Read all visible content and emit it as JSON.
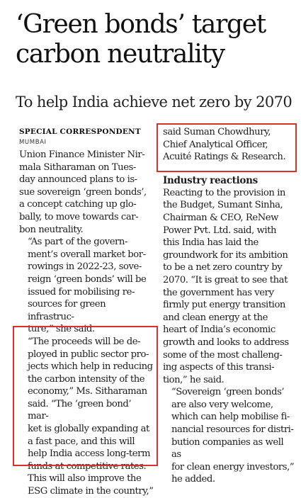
{
  "article": {
    "headline": "‘Green bonds’ target\ncarbon neutrality",
    "subhead": "To help India achieve net zero by 2070",
    "byline": "SPECIAL CORRESPONDENT",
    "dateline": "MUMBAI",
    "left_column": {
      "p1": "Union Finance Minister Nir-\nmala Sitharaman on Tues-\nday announced plans to is-\nsue sovereign ‘green bonds’,\na concept catching up glo-\nbally, to move towards car-\nbon neutrality.",
      "p2": "“As part of the govern-\nment’s overall market bor-\nrowings in 2022-23, sove-\nreign ‘green bonds’ will be\nissued for mobilising re-\nsources for green infrastruc-\nture,” she said.",
      "p3": "“The proceeds will be de-\nployed in public sector pro-\njects which help in reducing\nthe carbon intensity of the\neconomy,” Ms. Sitharaman\nsaid. “The ‘green bond’ mar-\nket is globally expanding at\na fast pace, and this will\nhelp India access long-term\nfunds at competitive rates.\nThis will also improve the\nESG climate in the country,”"
    },
    "right_column": {
      "p1": "said Suman Chowdhury,\nChief Analytical Officer,\nAcuité Ratings & Research.",
      "section_heading": "Industry reactions",
      "p2": "Reacting to the provision in\nthe Budget, Sumant Sinha,\nChairman & CEO, ReNew\nPower Pvt. Ltd. said, with\nthis India has laid the\ngroundwork for its ambition\nto be a net zero country by\n2070. “It is great to see that\nthe government has very\nfirmly put energy transition\nand clean energy at the\nheart of India’s economic\ngrowth and looks to address\nsome of the most challeng-\ning aspects of this transi-\ntion,” he said.",
      "p3": "“Sovereign ‘green bonds’\nare also very welcome,\nwhich can help mobilise fi-\nnancial resources for distri-\nbution companies as well as\nfor clean energy investors,”\nhe added."
    }
  },
  "highlight_color": "#d6332b"
}
